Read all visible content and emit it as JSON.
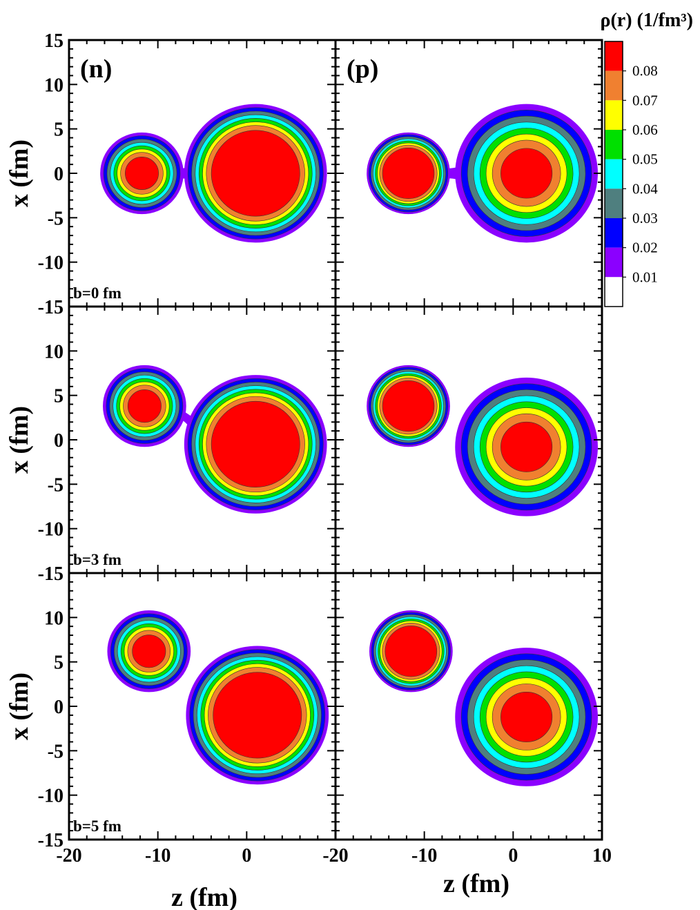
{
  "chart_data": {
    "type": "contour",
    "colorbar": {
      "title": "ρ(r) (1/fm³)",
      "levels": [
        0.01,
        0.02,
        0.03,
        0.04,
        0.05,
        0.06,
        0.07,
        0.08
      ],
      "level_labels": [
        "0.01",
        "0.02",
        "0.03",
        "0.04",
        "0.05",
        "0.06",
        "0.07",
        "0.08"
      ],
      "colors": [
        "#ffffff",
        "#8b00ff",
        "#0000ff",
        "#4f7f7f",
        "#00ffff",
        "#00e000",
        "#ffff00",
        "#f08030",
        "#ff0000"
      ]
    },
    "x_axis": {
      "label": "z (fm)",
      "range": [
        -20,
        10
      ],
      "left_ticks": [
        "-20",
        "-10",
        "0"
      ],
      "right_ticks": [
        "-20",
        "-10",
        "0",
        "10"
      ]
    },
    "y_axis": {
      "label": "x (fm)",
      "range": [
        -15,
        15
      ],
      "ticks": [
        "15",
        "10",
        "5",
        "0",
        "-5",
        "-10",
        "-15"
      ]
    },
    "panel_tags": [
      "(n)",
      "(p)"
    ],
    "rows": [
      {
        "impact_label": "b=0 fm",
        "n": {
          "small": {
            "z": -11.8,
            "x": 0.0,
            "r": 4.6,
            "inner": 2
          },
          "big": {
            "z": 1.0,
            "x": 0.0,
            "r": 7.8,
            "inner": 1
          },
          "neck": true
        },
        "p": {
          "small": {
            "z": -11.8,
            "x": 0.0,
            "r": 4.6,
            "inner": 1
          },
          "big": {
            "z": 1.5,
            "x": 0.0,
            "r": 7.8,
            "inner": 1.7
          },
          "neck": true
        }
      },
      {
        "impact_label": "b=3 fm",
        "n": {
          "small": {
            "z": -11.5,
            "x": 3.8,
            "r": 4.6,
            "inner": 2
          },
          "big": {
            "z": 1.0,
            "x": -0.5,
            "r": 7.8,
            "inner": 1
          },
          "neck": true
        },
        "p": {
          "small": {
            "z": -11.8,
            "x": 3.8,
            "r": 4.6,
            "inner": 1
          },
          "big": {
            "z": 1.5,
            "x": -0.8,
            "r": 7.8,
            "inner": 1.7
          },
          "neck": false
        }
      },
      {
        "impact_label": "b=5 fm",
        "n": {
          "small": {
            "z": -11.0,
            "x": 6.2,
            "r": 4.6,
            "inner": 2
          },
          "big": {
            "z": 1.2,
            "x": -1.0,
            "r": 7.8,
            "inner": 1
          },
          "neck": false
        },
        "p": {
          "small": {
            "z": -11.5,
            "x": 6.2,
            "r": 4.6,
            "inner": 1
          },
          "big": {
            "z": 1.5,
            "x": -1.2,
            "r": 7.8,
            "inner": 1.7
          },
          "neck": false
        }
      }
    ]
  }
}
